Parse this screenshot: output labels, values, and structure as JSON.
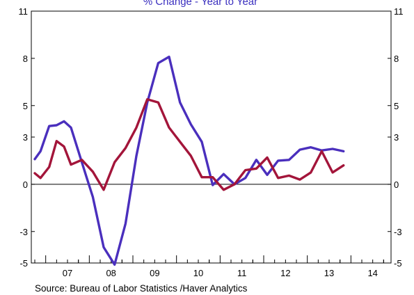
{
  "chart_data": {
    "type": "line",
    "title": "% Change - Year to Year",
    "source": "Source:  Bureau of Labor Statistics /Haver Analytics",
    "ylim": [
      -5,
      11
    ],
    "yticks": [
      11,
      8,
      5,
      3,
      0,
      -3,
      -5
    ],
    "xlim": [
      2006.67,
      2014.92
    ],
    "xticks": [
      "07",
      "08",
      "09",
      "10",
      "11",
      "12",
      "13",
      "14"
    ],
    "grid": false,
    "zero_line": true,
    "series": [
      {
        "color": "#4a2fbd",
        "points": [
          [
            2006.75,
            1.6
          ],
          [
            2006.88,
            2.1
          ],
          [
            2007.08,
            3.7
          ],
          [
            2007.25,
            3.75
          ],
          [
            2007.42,
            4.0
          ],
          [
            2007.58,
            3.6
          ],
          [
            2007.92,
            0.6
          ],
          [
            2008.08,
            -0.8
          ],
          [
            2008.33,
            -4.0
          ],
          [
            2008.58,
            -5.1
          ],
          [
            2008.83,
            -2.5
          ],
          [
            2009.08,
            1.8
          ],
          [
            2009.33,
            5.2
          ],
          [
            2009.58,
            7.7
          ],
          [
            2009.83,
            8.1
          ],
          [
            2010.08,
            5.2
          ],
          [
            2010.33,
            3.8
          ],
          [
            2010.58,
            2.7
          ],
          [
            2010.83,
            -0.05
          ],
          [
            2011.08,
            0.65
          ],
          [
            2011.33,
            0.0
          ],
          [
            2011.58,
            0.4
          ],
          [
            2011.83,
            1.55
          ],
          [
            2012.08,
            0.6
          ],
          [
            2012.33,
            1.5
          ],
          [
            2012.58,
            1.55
          ],
          [
            2012.83,
            2.2
          ],
          [
            2013.08,
            2.35
          ],
          [
            2013.33,
            2.15
          ],
          [
            2013.58,
            2.25
          ],
          [
            2013.83,
            2.1
          ]
        ]
      },
      {
        "color": "#a3153a",
        "points": [
          [
            2006.75,
            0.7
          ],
          [
            2006.88,
            0.4
          ],
          [
            2007.08,
            1.1
          ],
          [
            2007.25,
            2.75
          ],
          [
            2007.42,
            2.4
          ],
          [
            2007.58,
            1.25
          ],
          [
            2007.83,
            1.55
          ],
          [
            2008.08,
            0.8
          ],
          [
            2008.33,
            -0.35
          ],
          [
            2008.58,
            1.4
          ],
          [
            2008.83,
            2.3
          ],
          [
            2009.08,
            3.6
          ],
          [
            2009.33,
            5.4
          ],
          [
            2009.58,
            5.2
          ],
          [
            2009.83,
            3.6
          ],
          [
            2010.08,
            2.7
          ],
          [
            2010.33,
            1.8
          ],
          [
            2010.58,
            0.45
          ],
          [
            2010.83,
            0.45
          ],
          [
            2011.08,
            -0.35
          ],
          [
            2011.33,
            0.0
          ],
          [
            2011.58,
            0.9
          ],
          [
            2011.83,
            1.0
          ],
          [
            2012.08,
            1.7
          ],
          [
            2012.33,
            0.4
          ],
          [
            2012.58,
            0.55
          ],
          [
            2012.83,
            0.3
          ],
          [
            2013.08,
            0.75
          ],
          [
            2013.33,
            2.1
          ],
          [
            2013.58,
            0.75
          ],
          [
            2013.83,
            1.2
          ]
        ]
      }
    ]
  }
}
